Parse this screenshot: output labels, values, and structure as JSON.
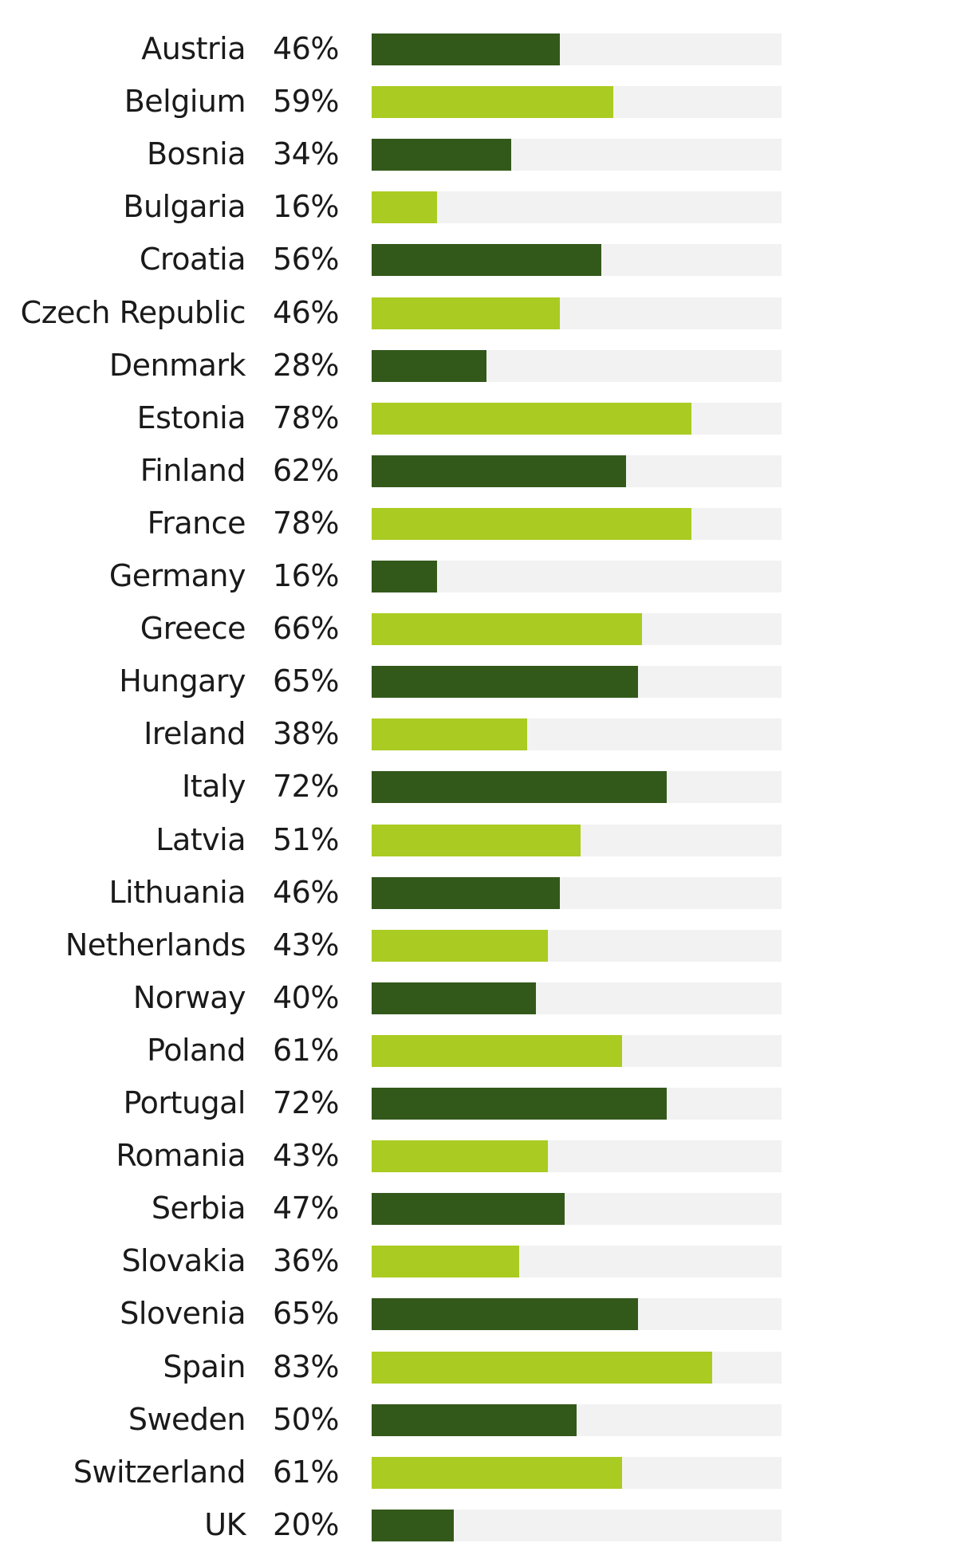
{
  "chart_data": {
    "type": "bar",
    "orientation": "horizontal",
    "xlim": [
      0,
      100
    ],
    "colors": [
      "#33591a",
      "#aacb22"
    ],
    "track_color": "#f2f2f2",
    "categories": [
      "Austria",
      "Belgium",
      "Bosnia",
      "Bulgaria",
      "Croatia",
      "Czech Republic",
      "Denmark",
      "Estonia",
      "Finland",
      "France",
      "Germany",
      "Greece",
      "Hungary",
      "Ireland",
      "Italy",
      "Latvia",
      "Lithuania",
      "Netherlands",
      "Norway",
      "Poland",
      "Portugal",
      "Romania",
      "Serbia",
      "Slovakia",
      "Slovenia",
      "Spain",
      "Sweden",
      "Switzerland",
      "UK"
    ],
    "values": [
      46,
      59,
      34,
      16,
      56,
      46,
      28,
      78,
      62,
      78,
      16,
      66,
      65,
      38,
      72,
      51,
      46,
      43,
      40,
      61,
      72,
      43,
      47,
      36,
      65,
      83,
      50,
      61,
      20
    ],
    "value_labels": [
      "46%",
      "59%",
      "34%",
      "16%",
      "56%",
      "46%",
      "28%",
      "78%",
      "62%",
      "78%",
      "16%",
      "66%",
      "65%",
      "38%",
      "72%",
      "51%",
      "46%",
      "43%",
      "40%",
      "61%",
      "72%",
      "43%",
      "47%",
      "36%",
      "65%",
      "83%",
      "50%",
      "61%",
      "20%"
    ]
  }
}
